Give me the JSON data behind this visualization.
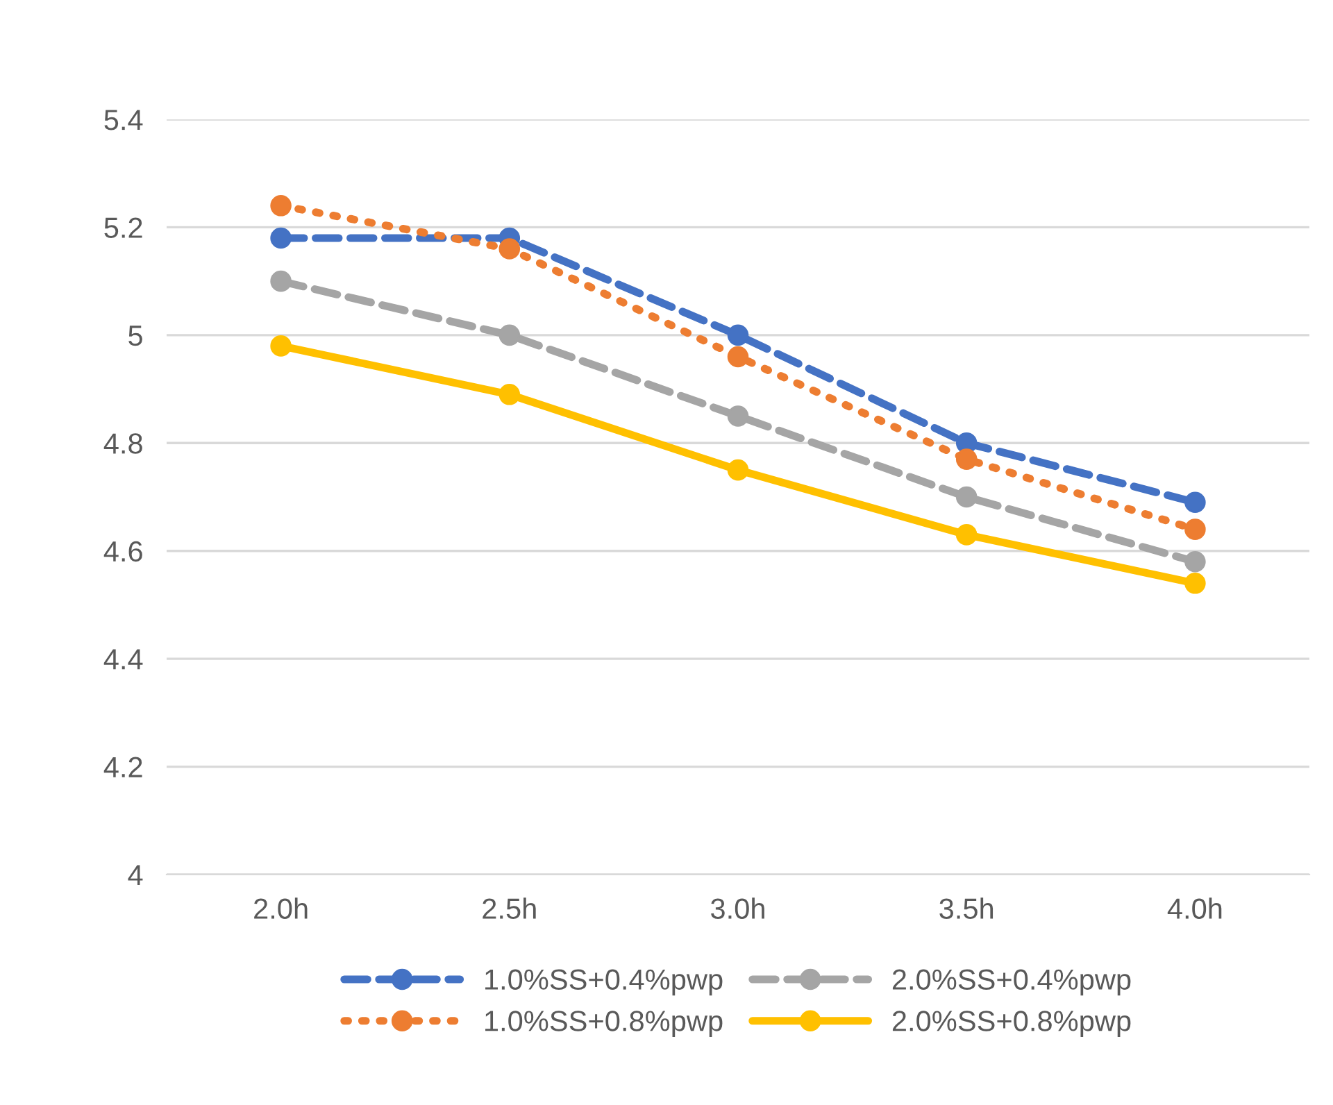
{
  "chart_data": {
    "type": "line",
    "categories": [
      "2.0h",
      "2.5h",
      "3.0h",
      "3.5h",
      "4.0h"
    ],
    "series": [
      {
        "name": "1.0%SS+0.4%pwp",
        "color": "#4472c4",
        "line_style": "dashed",
        "values": [
          5.18,
          5.18,
          5.0,
          4.8,
          4.69
        ]
      },
      {
        "name": "1.0%SS+0.8%pwp",
        "color": "#ed7d31",
        "line_style": "dotted",
        "values": [
          5.24,
          5.16,
          4.96,
          4.77,
          4.64
        ]
      },
      {
        "name": "2.0%SS+0.4%pwp",
        "color": "#a5a5a5",
        "line_style": "dashed",
        "values": [
          5.1,
          5.0,
          4.85,
          4.7,
          4.58
        ]
      },
      {
        "name": "2.0%SS+0.8%pwp",
        "color": "#ffc000",
        "line_style": "solid",
        "values": [
          4.98,
          4.89,
          4.75,
          4.63,
          4.54
        ]
      }
    ],
    "ylim": [
      4,
      5.4
    ],
    "yticks": [
      4,
      4.2,
      4.4,
      4.6,
      4.8,
      5,
      5.2,
      5.4
    ],
    "grid": "y",
    "legend": "bottom",
    "marker": "circle"
  }
}
